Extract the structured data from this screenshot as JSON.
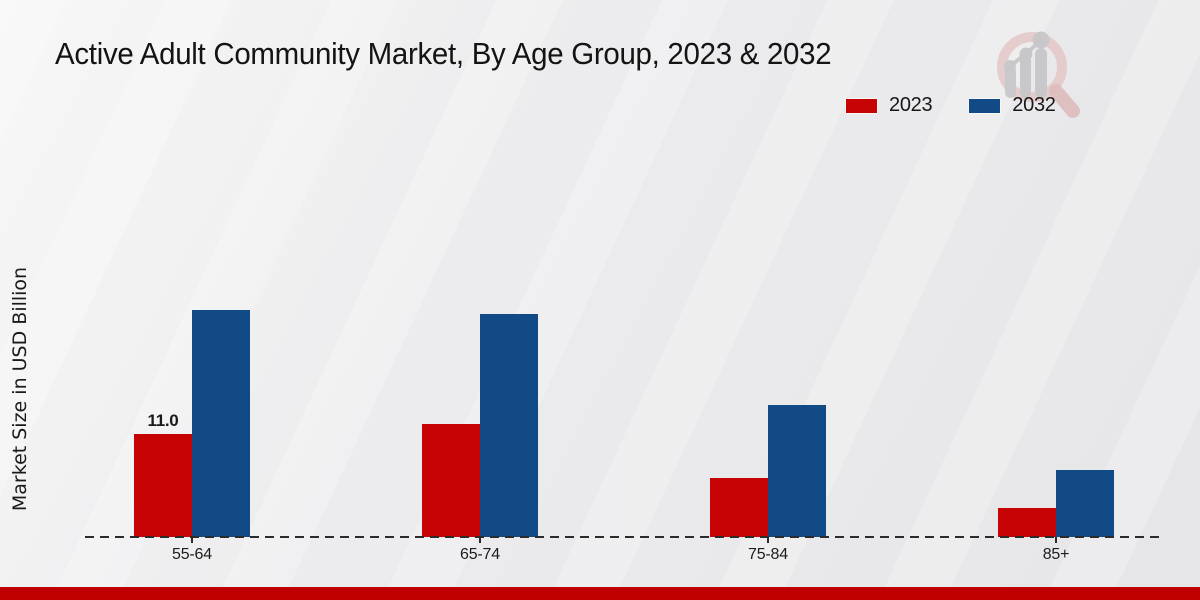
{
  "title": "Active Adult Community Market, By Age Group, 2023 & 2032",
  "y_axis_label": "Market Size in USD Billion",
  "legend": [
    {
      "label": "2023",
      "color": "#C60404"
    },
    {
      "label": "2032",
      "color": "#114A85"
    }
  ],
  "colors": {
    "bar_2023": "#C60404",
    "bar_2032": "#114A85",
    "footer_band": "#C00000",
    "baseline": "#2B2B2B",
    "background": "#ECECEE"
  },
  "chart_data": {
    "type": "bar",
    "title": "Active Adult Community Market, By Age Group, 2023 & 2032",
    "xlabel": "",
    "ylabel": "Market Size in USD Billion",
    "categories": [
      "55-64",
      "65-74",
      "75-84",
      "85+"
    ],
    "series": [
      {
        "name": "2023",
        "color": "#C60404",
        "values": [
          11.0,
          12.1,
          6.3,
          3.1
        ]
      },
      {
        "name": "2032",
        "color": "#114A85",
        "values": [
          24.3,
          23.8,
          14.1,
          7.2
        ]
      }
    ],
    "data_labels": [
      {
        "series_index": 0,
        "category_index": 0,
        "text": "11.0"
      }
    ],
    "ylim": [
      0,
      28
    ],
    "grid": false,
    "y_axis_ticks_visible": false,
    "legend_position": "top-right",
    "baseline_style": "dashed"
  },
  "watermark": {
    "name": "market-research-magnifier-logo"
  }
}
